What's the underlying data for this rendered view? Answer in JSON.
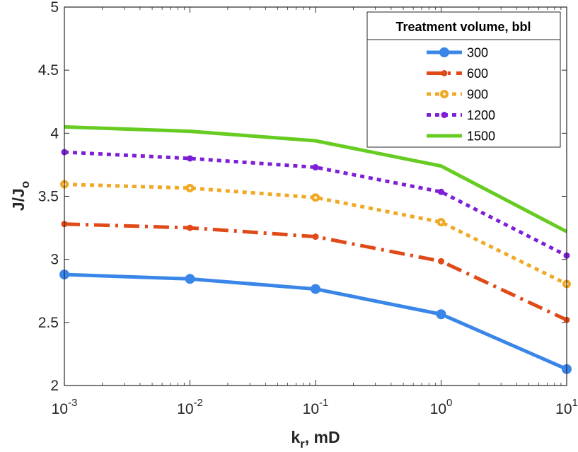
{
  "chart_data": {
    "type": "line",
    "xscale": "log",
    "xlim": [
      0.001,
      10
    ],
    "ylim": [
      2,
      5
    ],
    "x": [
      0.001,
      0.01,
      0.1,
      1,
      10
    ],
    "x_ticks": [
      {
        "base": "10",
        "exp": "-3"
      },
      {
        "base": "10",
        "exp": "-2"
      },
      {
        "base": "10",
        "exp": "-1"
      },
      {
        "base": "10",
        "exp": "0"
      },
      {
        "base": "10",
        "exp": "1"
      }
    ],
    "y_ticks": [
      "2",
      "2.5",
      "3",
      "3.5",
      "4",
      "4.5",
      "5"
    ],
    "xlabel": {
      "main": "k",
      "sub": "r",
      "rest": ", mD"
    },
    "ylabel": {
      "main": "J/J",
      "sub": "o"
    },
    "grid": false,
    "legend": {
      "title": "Treatment volume, bbl",
      "position": "top-right"
    },
    "series": [
      {
        "name": "300",
        "color": "#3a86e8",
        "style": "solid",
        "marker": "circle",
        "values": [
          2.88,
          2.845,
          2.765,
          2.565,
          2.13
        ]
      },
      {
        "name": "600",
        "color": "#e04a18",
        "style": "dashdot",
        "marker": "small-dot",
        "values": [
          3.28,
          3.25,
          3.18,
          2.985,
          2.52
        ]
      },
      {
        "name": "900",
        "color": "#f0a925",
        "style": "dotted",
        "marker": "circle-dot",
        "values": [
          3.595,
          3.565,
          3.49,
          3.295,
          2.805
        ]
      },
      {
        "name": "1200",
        "color": "#7d1fd6",
        "style": "dotted",
        "marker": "small-dot",
        "values": [
          3.85,
          3.8,
          3.73,
          3.535,
          3.03
        ]
      },
      {
        "name": "1500",
        "color": "#66cc22",
        "style": "solid",
        "marker": "none",
        "values": [
          4.05,
          4.015,
          3.94,
          3.74,
          3.22
        ]
      }
    ]
  }
}
